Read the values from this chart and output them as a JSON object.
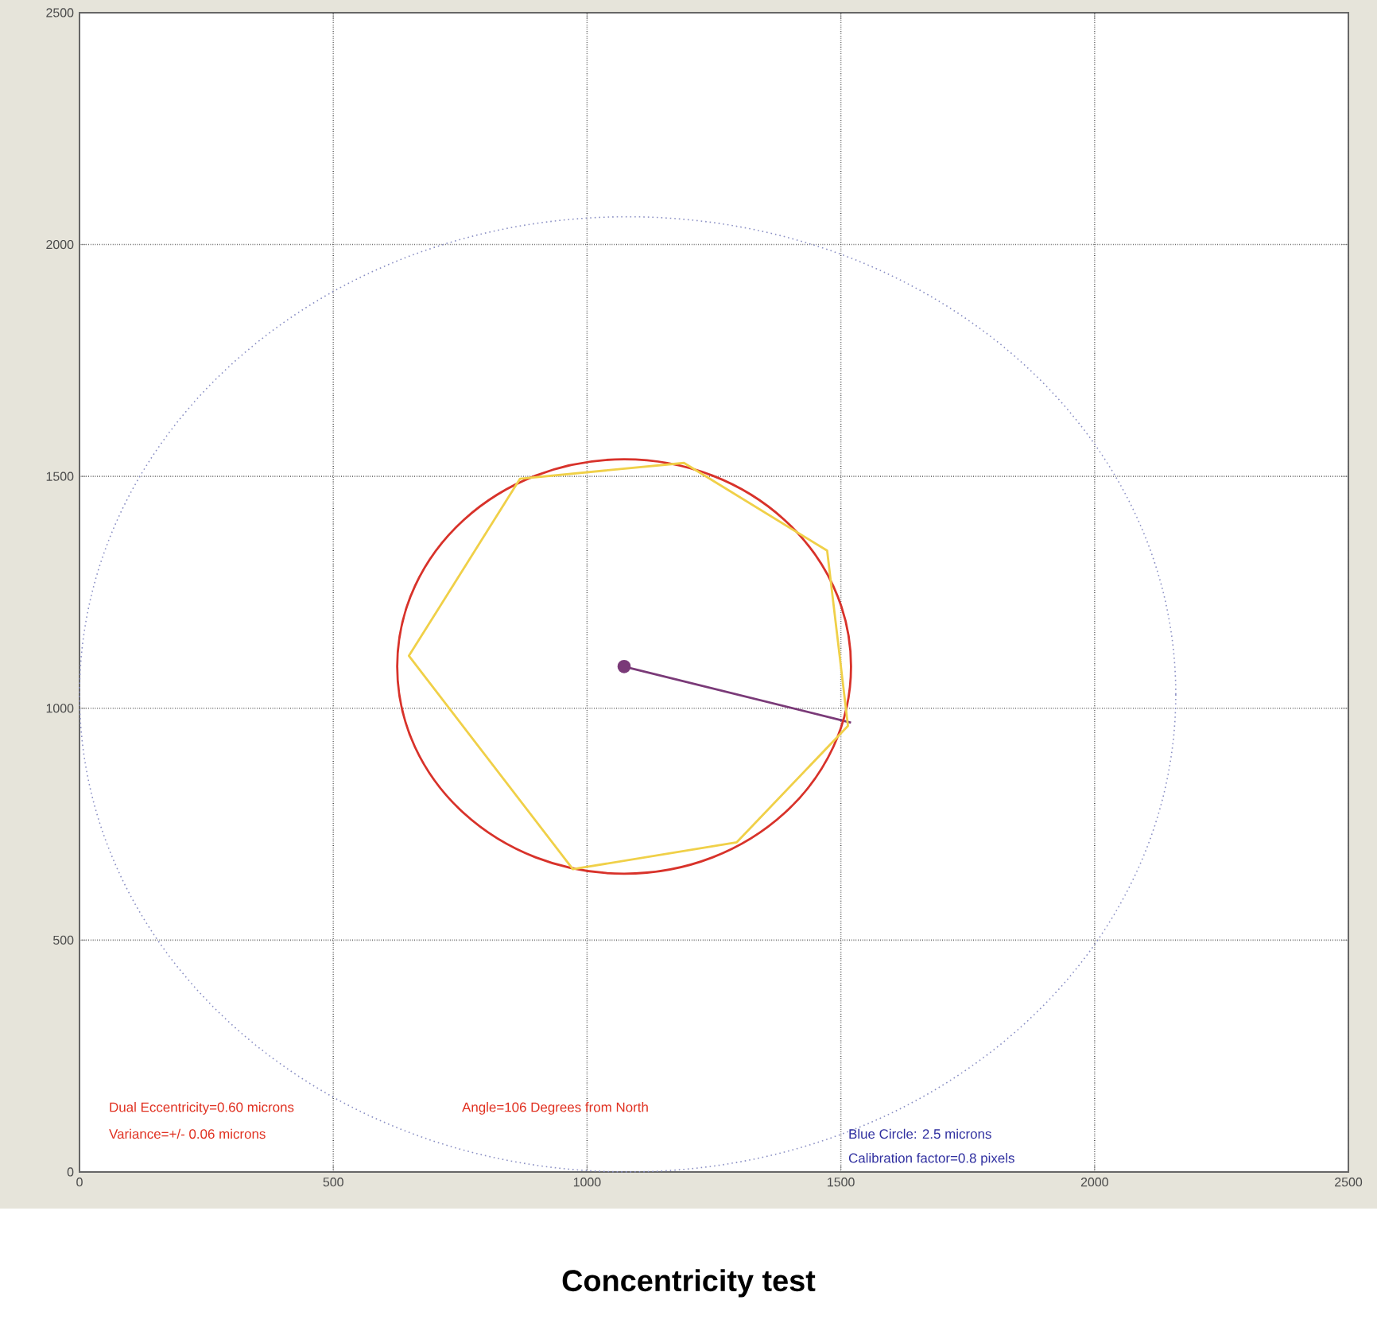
{
  "chart_data": {
    "type": "line",
    "title": "Concentricity test",
    "xlim": [
      0,
      2500
    ],
    "ylim": [
      0,
      2500
    ],
    "xticks": [
      0,
      500,
      1000,
      1500,
      2000,
      2500
    ],
    "yticks": [
      0,
      500,
      1000,
      1500,
      2000,
      2500
    ],
    "grid": true,
    "series": [
      {
        "color": "#7a3a78",
        "line_style": "solid",
        "marker": "circle",
        "x": [
          1073,
          1520
        ],
        "values": [
          1090,
          969
        ]
      }
    ],
    "annotations": [
      "Dual Eccentricity=0.60 microns",
      "Variance=+/- 0.06 microns",
      "Angle=106 Degrees from North",
      "Blue Circle: 2.5 microns",
      "Calibration factor=0.8 pixels"
    ]
  }
}
